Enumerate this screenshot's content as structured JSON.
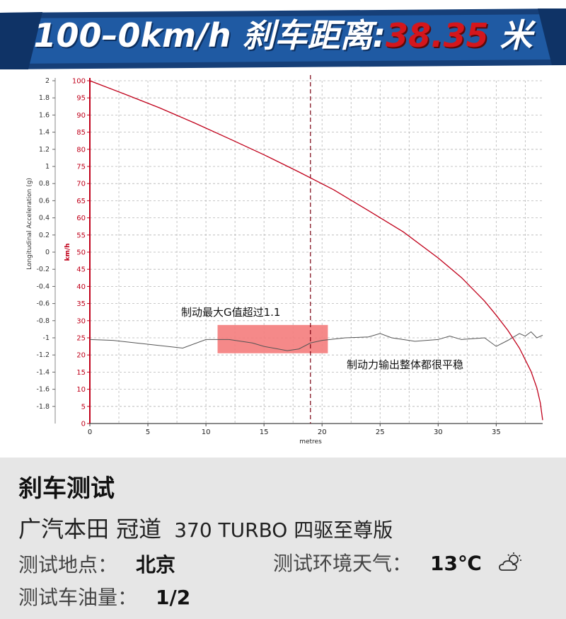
{
  "banner": {
    "prefix": "100–0km/h 刹车距离:",
    "value": "38.35",
    "unit": " 米",
    "bg_color": "#1d4d8f",
    "accent_color": "#d4161c"
  },
  "chart_data": {
    "type": "line",
    "xlabel": "metres",
    "ylabel_left": "Longitudinal Acceleration (g)",
    "ylabel_right": "km/h",
    "xlim": [
      0,
      39
    ],
    "ylim_accel": [
      -2,
      2
    ],
    "ylim_speed": [
      0,
      100
    ],
    "x_ticks": [
      "0",
      "5",
      "10",
      "15",
      "20",
      "25",
      "30",
      "35"
    ],
    "accel_ticks": [
      "2",
      "1.8",
      "1.6",
      "1.4",
      "1.2",
      "1",
      "0.8",
      "0.6",
      "0.4",
      "0.2",
      "0",
      "-0.2",
      "-0.4",
      "-0.6",
      "-0.8",
      "-1",
      "-1.2",
      "-1.4",
      "-1.6",
      "-1.8"
    ],
    "speed_ticks": [
      "100",
      "95",
      "90",
      "85",
      "80",
      "75",
      "70",
      "65",
      "60",
      "55",
      "50",
      "45",
      "40",
      "35",
      "30",
      "25",
      "20",
      "15",
      "10",
      "5",
      "0"
    ],
    "grid": true,
    "marker_x": 19,
    "series": [
      {
        "name": "speed",
        "color": "#c0001a",
        "x": [
          0,
          3,
          6,
          9,
          12,
          15,
          18,
          21,
          24,
          27,
          30,
          32,
          34,
          35,
          36,
          37,
          38,
          38.5,
          38.8,
          39
        ],
        "y": [
          100,
          96.1,
          92.1,
          87.7,
          83.1,
          78.4,
          73.4,
          68.2,
          62.1,
          55.9,
          48.3,
          42.6,
          35.7,
          31.6,
          27.2,
          22.0,
          15.2,
          10.4,
          6.0,
          1.0
        ]
      },
      {
        "name": "acceleration",
        "color": "#555555",
        "x": [
          0,
          2,
          4,
          6,
          8,
          10,
          12,
          14,
          15,
          17,
          18,
          19,
          20,
          22,
          24,
          25,
          26,
          28,
          30,
          31,
          32,
          34,
          35,
          36,
          37,
          37.5,
          38,
          38.5,
          39
        ],
        "y": [
          -1.02,
          -1.03,
          -1.06,
          -1.09,
          -1.12,
          -1.02,
          -1.02,
          -1.06,
          -1.1,
          -1.15,
          -1.13,
          -1.06,
          -1.03,
          -1.0,
          -0.99,
          -0.95,
          -1.0,
          -1.04,
          -1.02,
          -0.98,
          -1.02,
          -1.0,
          -1.1,
          -1.03,
          -0.95,
          -0.98,
          -0.93,
          -1.0,
          -0.97
        ]
      }
    ],
    "annotations": [
      {
        "text": "制动最大G值超过1.1",
        "highlight_x": [
          11,
          20.5
        ],
        "highlight_y": [
          -0.85,
          -1.18
        ]
      },
      {
        "text": "制动力输出整体都很平稳"
      }
    ]
  },
  "info": {
    "title": "刹车测试",
    "model": "广汽本田 冠道",
    "trim": "370 TURBO 四驱至尊版",
    "location_label": "测试地点：",
    "location_value": "北京",
    "weather_label": "测试环境天气：",
    "weather_value": "13℃",
    "weather_icon": "cloudy-icon",
    "fuel_label": "测试车油量：",
    "fuel_value": "1/2"
  }
}
